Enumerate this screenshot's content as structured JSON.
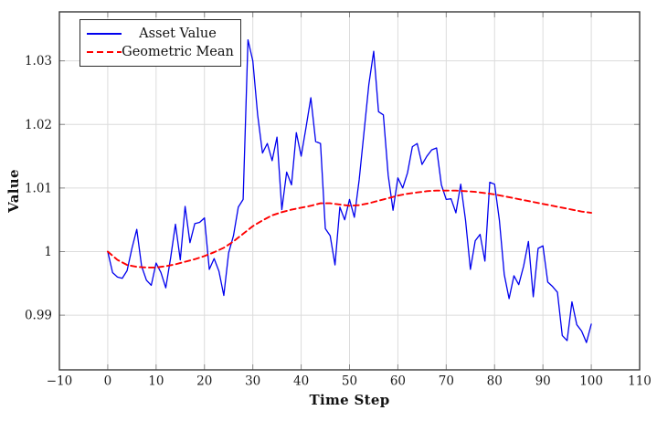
{
  "figure": {
    "legend": [
      {
        "label": "Asset Value",
        "color": "#0000ee",
        "style": "solid"
      },
      {
        "label": "Geometric Mean",
        "color": "#fe0000",
        "style": "dashed"
      }
    ],
    "colors": {
      "background": "#ffffff",
      "grid": "#dcdcdc",
      "axis_frame": "#3a3a3a",
      "tick": "#8a8a8a",
      "text": "#1c1c1c"
    }
  },
  "chart_data": {
    "type": "line",
    "title": "",
    "xlabel": "Time Step",
    "ylabel": "Value",
    "xlim": [
      -10,
      110
    ],
    "ylim": [
      0.9814,
      1.0377
    ],
    "x_ticks": [
      -10,
      0,
      10,
      20,
      30,
      40,
      50,
      60,
      70,
      80,
      90,
      100,
      110
    ],
    "y_ticks": [
      0.99,
      1,
      1.01,
      1.02,
      1.03
    ],
    "y_tick_labels": [
      "0.99",
      "1",
      "1.01",
      "1.02",
      "1.03"
    ],
    "grid": true,
    "legend_position": "top-left",
    "series": [
      {
        "name": "Asset Value",
        "color": "#0000ee",
        "style": "solid",
        "x": [
          0,
          1,
          2,
          3,
          4,
          5,
          6,
          7,
          8,
          9,
          10,
          11,
          12,
          13,
          14,
          15,
          16,
          17,
          18,
          19,
          20,
          21,
          22,
          23,
          24,
          25,
          26,
          27,
          28,
          29,
          30,
          31,
          32,
          33,
          34,
          35,
          36,
          37,
          38,
          39,
          40,
          41,
          42,
          43,
          44,
          45,
          46,
          47,
          48,
          49,
          50,
          51,
          52,
          53,
          54,
          55,
          56,
          57,
          58,
          59,
          60,
          61,
          62,
          63,
          64,
          65,
          66,
          67,
          68,
          69,
          70,
          71,
          72,
          73,
          74,
          75,
          76,
          77,
          78,
          79,
          80,
          81,
          82,
          83,
          84,
          85,
          86,
          87,
          88,
          89,
          90,
          91,
          92,
          93,
          94,
          95,
          96,
          97,
          98,
          99,
          100
        ],
        "y": [
          1.0,
          0.9967,
          0.996,
          0.9958,
          0.997,
          1.0005,
          1.0035,
          0.9977,
          0.9955,
          0.9947,
          0.9982,
          0.9967,
          0.9943,
          0.999,
          1.0043,
          0.9987,
          1.0071,
          1.0014,
          1.0044,
          1.0046,
          1.0053,
          0.9972,
          0.9989,
          0.9969,
          0.9931,
          0.9998,
          1.0025,
          1.007,
          1.0082,
          1.0333,
          1.03,
          1.0215,
          1.0155,
          1.017,
          1.0143,
          1.018,
          1.0066,
          1.0125,
          1.0105,
          1.0187,
          1.015,
          1.0195,
          1.0242,
          1.0173,
          1.017,
          1.0036,
          1.0025,
          0.9979,
          1.007,
          1.005,
          1.0082,
          1.0054,
          1.0113,
          1.0188,
          1.0263,
          1.0315,
          1.022,
          1.0215,
          1.012,
          1.0065,
          1.0116,
          1.01,
          1.0124,
          1.0165,
          1.017,
          1.0137,
          1.015,
          1.016,
          1.0163,
          1.0105,
          1.0082,
          1.0083,
          1.0061,
          1.0106,
          1.0049,
          0.9972,
          1.0017,
          1.0027,
          0.9985,
          1.0109,
          1.0106,
          1.0049,
          0.9964,
          0.9926,
          0.9962,
          0.9948,
          0.9977,
          1.0016,
          0.9929,
          1.0005,
          1.0009,
          0.9952,
          0.9945,
          0.9936,
          0.9868,
          0.986,
          0.9921,
          0.9885,
          0.9875,
          0.9857,
          0.9886
        ]
      },
      {
        "name": "Geometric Mean",
        "color": "#fe0000",
        "style": "dashed",
        "x": [
          0,
          2,
          4,
          6,
          8,
          10,
          12,
          14,
          16,
          18,
          20,
          22,
          24,
          26,
          28,
          30,
          32,
          34,
          36,
          38,
          40,
          42,
          44,
          46,
          48,
          50,
          52,
          54,
          56,
          58,
          60,
          62,
          64,
          66,
          68,
          70,
          72,
          74,
          76,
          78,
          80,
          82,
          84,
          86,
          88,
          90,
          92,
          94,
          96,
          98,
          100
        ],
        "y": [
          1.0,
          0.9987,
          0.9979,
          0.9976,
          0.9975,
          0.9975,
          0.9977,
          0.998,
          0.9984,
          0.9988,
          0.9993,
          0.9999,
          1.0006,
          1.0016,
          1.0028,
          1.004,
          1.0049,
          1.0057,
          1.0062,
          1.0066,
          1.0069,
          1.0072,
          1.0076,
          1.0076,
          1.0074,
          1.0072,
          1.0073,
          1.0076,
          1.008,
          1.0084,
          1.0088,
          1.0091,
          1.0093,
          1.0095,
          1.0096,
          1.0096,
          1.0096,
          1.0095,
          1.0094,
          1.0092,
          1.009,
          1.0087,
          1.0084,
          1.0081,
          1.0078,
          1.0075,
          1.0072,
          1.0069,
          1.0066,
          1.0063,
          1.0061
        ]
      }
    ]
  }
}
